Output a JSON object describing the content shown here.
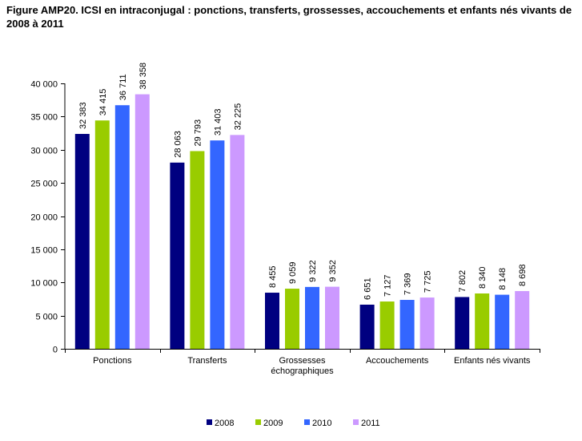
{
  "title": "Figure AMP20. ICSI en intraconjugal : ponctions, transferts, grossesses, accouchements et enfants nés vivants de 2008 à 2011",
  "chart_data": {
    "type": "bar",
    "title": "Figure AMP20. ICSI en intraconjugal : ponctions, transferts, grossesses, accouchements et enfants nés vivants de 2008 à 2011",
    "xlabel": "",
    "ylabel": "",
    "ylim": [
      0,
      40000
    ],
    "yticks": [
      0,
      5000,
      10000,
      15000,
      20000,
      25000,
      30000,
      35000,
      40000
    ],
    "ytick_labels": [
      "0",
      "5 000",
      "10 000",
      "15 000",
      "20 000",
      "25 000",
      "30 000",
      "35 000",
      "40 000"
    ],
    "grid": false,
    "legend_position": "bottom",
    "categories": [
      [
        "Ponctions"
      ],
      [
        "Transferts"
      ],
      [
        "Grossesses",
        "échographiques"
      ],
      [
        "Accouchements"
      ],
      [
        "Enfants nés vivants"
      ]
    ],
    "series": [
      {
        "name": "2008",
        "color": "#000080",
        "values": [
          32383,
          28063,
          8455,
          6651,
          7802
        ],
        "labels": [
          "32 383",
          "28 063",
          "8 455",
          "6 651",
          "7 802"
        ]
      },
      {
        "name": "2009",
        "color": "#99CC00",
        "values": [
          34415,
          29793,
          9059,
          7127,
          8340
        ],
        "labels": [
          "34 415",
          "29 793",
          "9 059",
          "7 127",
          "8 340"
        ]
      },
      {
        "name": "2010",
        "color": "#3366FF",
        "values": [
          36711,
          31403,
          9322,
          7369,
          8148
        ],
        "labels": [
          "36 711",
          "31 403",
          "9 322",
          "7 369",
          "8 148"
        ]
      },
      {
        "name": "2011",
        "color": "#CC99FF",
        "values": [
          38358,
          32225,
          9352,
          7725,
          8698
        ],
        "labels": [
          "38 358",
          "32 225",
          "9 352",
          "7 725",
          "8 698"
        ]
      }
    ]
  }
}
